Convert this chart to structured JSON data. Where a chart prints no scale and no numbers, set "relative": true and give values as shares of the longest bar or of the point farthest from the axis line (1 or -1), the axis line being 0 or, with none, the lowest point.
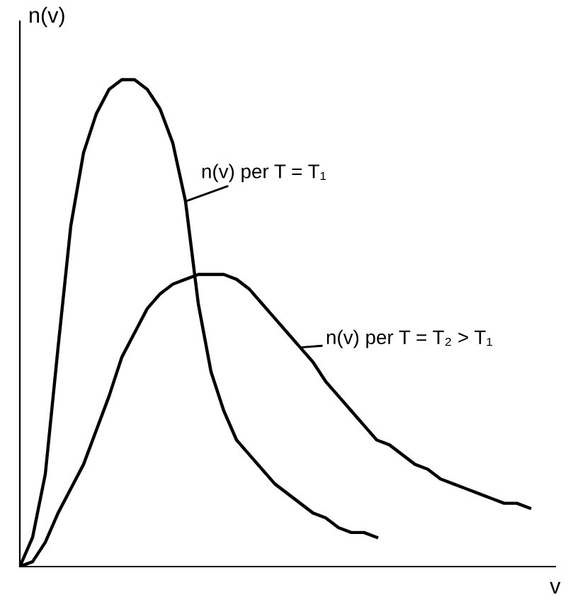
{
  "chart_data": {
    "type": "line",
    "relative": true,
    "xlabel": "v",
    "ylabel": "n(v)",
    "marker": "none",
    "line_style": "solid",
    "categories": [
      null,
      null,
      null,
      null,
      null,
      null,
      null,
      null,
      null,
      null,
      null,
      null,
      null,
      null,
      null,
      null,
      null,
      null,
      null,
      null,
      null,
      null,
      null,
      null,
      null,
      null,
      null,
      null,
      null,
      null,
      null,
      null,
      null,
      null,
      null,
      null,
      null,
      null,
      null,
      null,
      null
    ],
    "series": [
      {
        "name": "n(v) per T = T₁",
        "color": "#000000",
        "values": [
          0,
          0.06,
          0.19,
          0.45,
          0.7,
          0.85,
          0.93,
          0.98,
          1,
          1,
          0.98,
          0.94,
          0.87,
          0.75,
          0.54,
          0.4,
          0.32,
          0.26,
          0.23,
          0.2,
          0.17,
          0.15,
          0.13,
          0.11,
          0.1,
          0.08,
          0.07,
          0.07,
          0.06,
          null,
          null,
          null,
          null,
          null,
          null,
          null,
          null,
          null,
          null,
          null,
          null
        ]
      },
      {
        "name": "n(v) per T = T₂ > T₁",
        "color": "#000000",
        "values": [
          0,
          0.01,
          0.05,
          0.11,
          0.16,
          0.21,
          0.28,
          0.35,
          0.43,
          0.48,
          0.53,
          0.56,
          0.58,
          0.59,
          0.6,
          0.6,
          0.6,
          0.59,
          0.57,
          0.54,
          0.51,
          0.48,
          0.45,
          0.42,
          0.38,
          0.35,
          0.32,
          0.29,
          0.26,
          0.25,
          0.23,
          0.21,
          0.2,
          0.18,
          0.17,
          0.16,
          0.15,
          0.14,
          0.13,
          0.13,
          0.12
        ]
      }
    ]
  }
}
